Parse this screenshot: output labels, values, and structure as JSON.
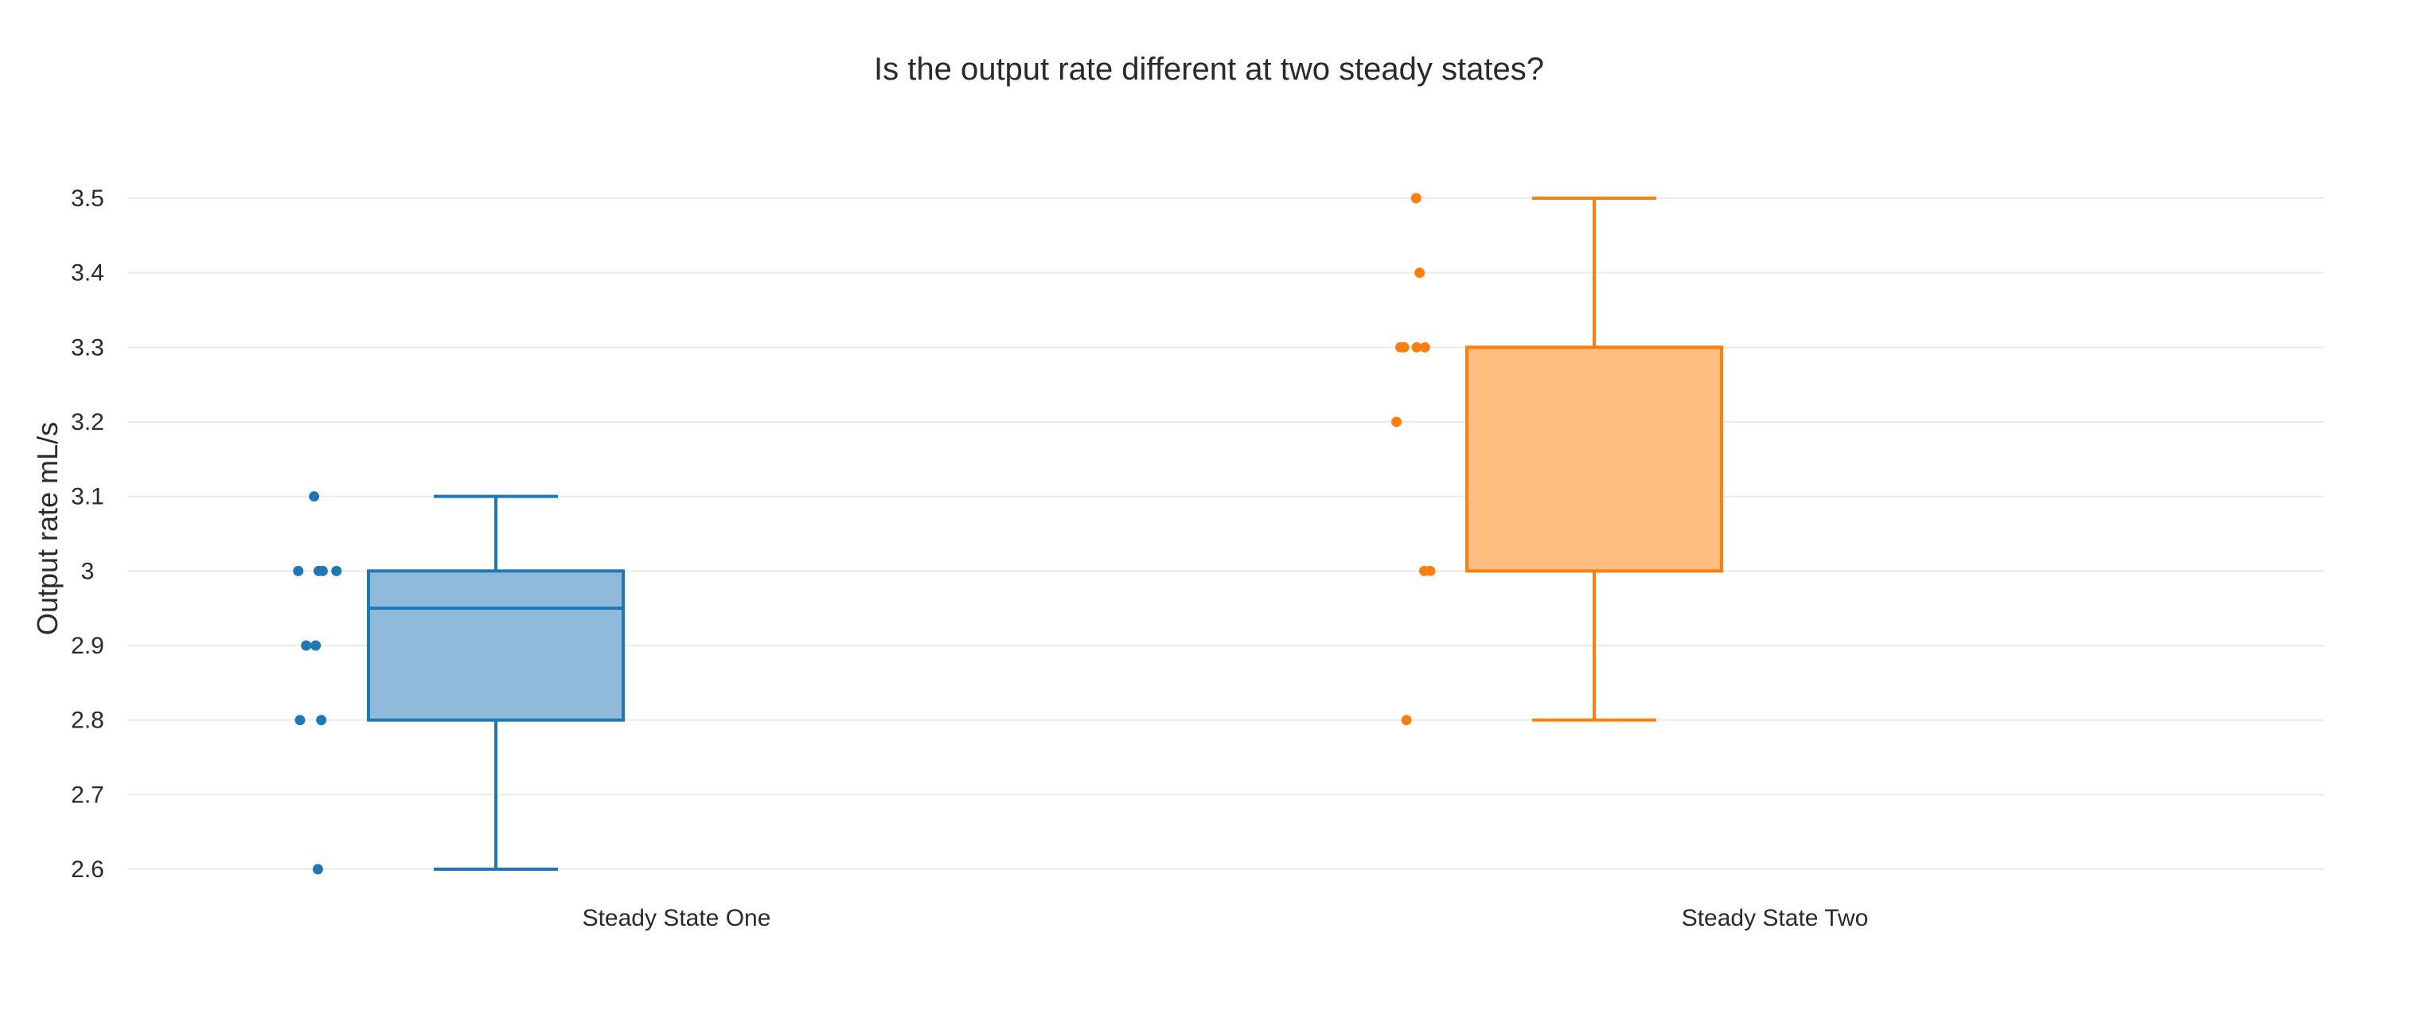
{
  "chart_data": {
    "type": "box",
    "title": "Is the output rate different at two steady states?",
    "xlabel": "",
    "ylabel": "Output rate mL/s",
    "ylim": [
      2.6,
      3.5
    ],
    "yticks": [
      2.6,
      2.7,
      2.8,
      2.9,
      3,
      3.1,
      3.2,
      3.3,
      3.4,
      3.5
    ],
    "grid": true,
    "legend": "none",
    "categories": [
      "Steady State One",
      "Steady State Two"
    ],
    "series": [
      {
        "category": "Steady State One",
        "color": "#1f77b4",
        "fill": "#8fbad9",
        "points": [
          2.6,
          2.8,
          2.8,
          2.9,
          2.9,
          3.0,
          3.0,
          3.0,
          3.0,
          3.1
        ],
        "q1": 2.8,
        "median": 2.95,
        "q3": 3.0,
        "lower_whisker": 2.6,
        "upper_whisker": 3.1
      },
      {
        "category": "Steady State Two",
        "color": "#ff7f0e",
        "fill": "#ffbd80",
        "points": [
          2.8,
          3.0,
          3.0,
          3.2,
          3.3,
          3.3,
          3.3,
          3.3,
          3.4,
          3.5
        ],
        "q1": 3.0,
        "median": 3.3,
        "q3": 3.3,
        "lower_whisker": 2.8,
        "upper_whisker": 3.5
      }
    ]
  }
}
